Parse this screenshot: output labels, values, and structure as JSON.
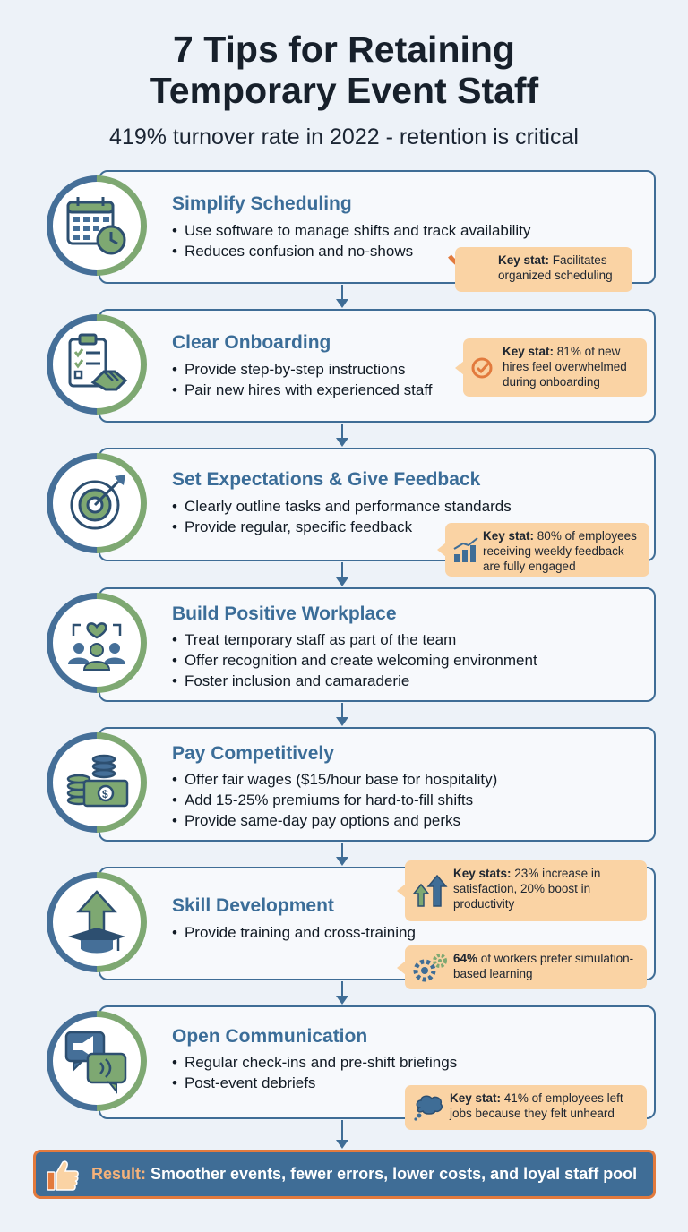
{
  "header": {
    "title_line1": "7 Tips for Retaining",
    "title_line2": "Temporary Event Staff",
    "subtitle": "419% turnover rate in 2022 - retention is critical"
  },
  "colors": {
    "primary_blue": "#3f6d96",
    "accent_green": "#7ea872",
    "stat_orange": "#fad3a4",
    "result_border": "#e27a3d"
  },
  "tips": [
    {
      "title": "Simplify Scheduling",
      "icon": "calendar-clock-icon",
      "bullets": [
        "Use software to manage shifts and track availability",
        "Reduces confusion and no-shows"
      ],
      "stats": [
        {
          "label": "Key stat:",
          "text": "Facilitates organized scheduling",
          "icon": "curved-arrow-icon"
        }
      ]
    },
    {
      "title": "Clear Onboarding",
      "icon": "clipboard-handshake-icon",
      "bullets": [
        "Provide step-by-step instructions",
        "Pair new hires with experienced staff"
      ],
      "stats": [
        {
          "label": "Key stat:",
          "text": "81% of new hires feel overwhelmed during onboarding",
          "icon": "check-circle-icon"
        }
      ]
    },
    {
      "title": "Set Expectations & Give Feedback",
      "icon": "target-arrow-icon",
      "bullets": [
        "Clearly outline tasks and performance standards",
        "Provide regular, specific feedback"
      ],
      "stats": [
        {
          "label": "Key stat:",
          "text": "80% of employees receiving weekly feedback are fully engaged",
          "icon": "growth-chart-icon"
        }
      ]
    },
    {
      "title": "Build Positive Workplace",
      "icon": "team-heart-icon",
      "bullets": [
        "Treat temporary staff as part of the team",
        "Offer recognition and create welcoming environment",
        "Foster inclusion and camaraderie"
      ],
      "stats": []
    },
    {
      "title": "Pay Competitively",
      "icon": "coins-cash-icon",
      "bullets": [
        "Offer fair wages ($15/hour base for hospitality)",
        "Add 15-25% premiums for hard-to-fill shifts",
        "Provide same-day pay options and perks"
      ],
      "stats": []
    },
    {
      "title": "Skill Development",
      "icon": "graduation-arrow-icon",
      "bullets": [
        "Provide training and cross-training"
      ],
      "stats": [
        {
          "label": "Key stats:",
          "text": "23% increase in satisfaction, 20% boost in productivity",
          "icon": "up-arrows-icon"
        },
        {
          "label": "64%",
          "text": "of workers prefer simulation-based learning",
          "icon": "gears-icon"
        }
      ]
    },
    {
      "title": "Open Communication",
      "icon": "speech-megaphone-icon",
      "bullets": [
        "Regular check-ins and pre-shift briefings",
        "Post-event debriefs"
      ],
      "stats": [
        {
          "label": "Key stat:",
          "text": "41% of employees left jobs because they felt unheard",
          "icon": "thought-bubble-icon"
        }
      ]
    }
  ],
  "result": {
    "label": "Result:",
    "text": "Smoother events, fewer errors, lower costs, and loyal staff pool",
    "icon": "thumbs-up-icon"
  }
}
